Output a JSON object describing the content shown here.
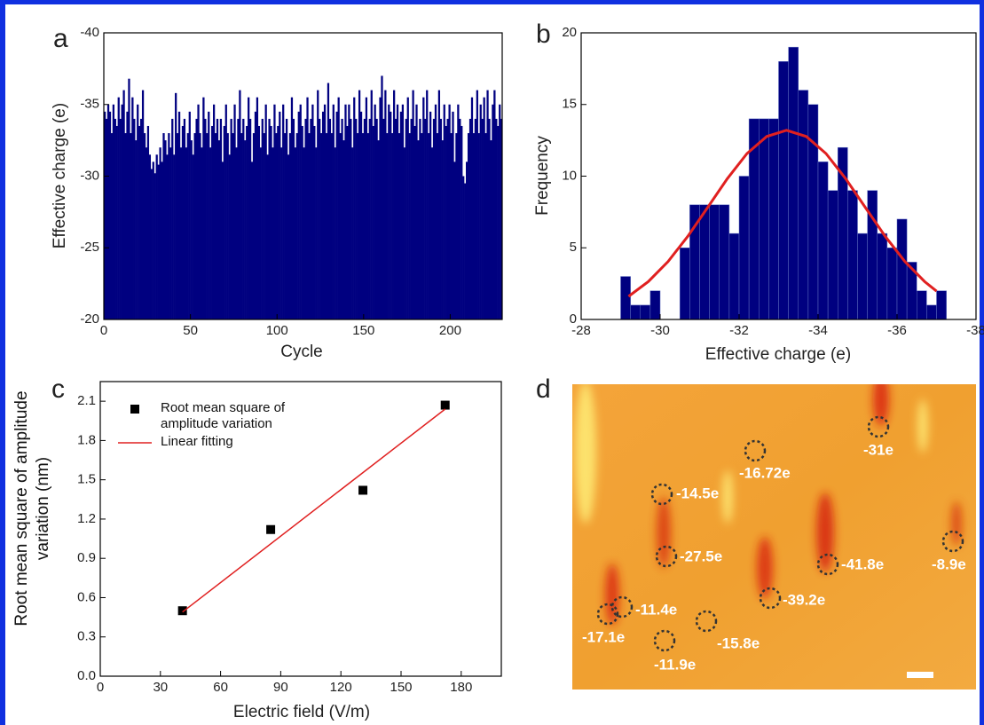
{
  "chart_data": [
    {
      "type": "bar",
      "panel_label": "a",
      "xlabel": "Cycle",
      "ylabel": "Effective charge (e)",
      "color": "#000080",
      "x": [
        1,
        2,
        3,
        4,
        5,
        6,
        7,
        8,
        9,
        10,
        11,
        12,
        13,
        14,
        15,
        16,
        17,
        18,
        19,
        20,
        21,
        22,
        23,
        24,
        25,
        26,
        27,
        28,
        29,
        30,
        31,
        32,
        33,
        34,
        35,
        36,
        37,
        38,
        39,
        40,
        41,
        42,
        43,
        44,
        45,
        46,
        47,
        48,
        49,
        50,
        51,
        52,
        53,
        54,
        55,
        56,
        57,
        58,
        59,
        60,
        61,
        62,
        63,
        64,
        65,
        66,
        67,
        68,
        69,
        70,
        71,
        72,
        73,
        74,
        75,
        76,
        77,
        78,
        79,
        80,
        81,
        82,
        83,
        84,
        85,
        86,
        87,
        88,
        89,
        90,
        91,
        92,
        93,
        94,
        95,
        96,
        97,
        98,
        99,
        100,
        101,
        102,
        103,
        104,
        105,
        106,
        107,
        108,
        109,
        110,
        111,
        112,
        113,
        114,
        115,
        116,
        117,
        118,
        119,
        120,
        121,
        122,
        123,
        124,
        125,
        126,
        127,
        128,
        129,
        130,
        131,
        132,
        133,
        134,
        135,
        136,
        137,
        138,
        139,
        140,
        141,
        142,
        143,
        144,
        145,
        146,
        147,
        148,
        149,
        150,
        151,
        152,
        153,
        154,
        155,
        156,
        157,
        158,
        159,
        160,
        161,
        162,
        163,
        164,
        165,
        166,
        167,
        168,
        169,
        170,
        171,
        172,
        173,
        174,
        175,
        176,
        177,
        178,
        179,
        180,
        181,
        182,
        183,
        184,
        185,
        186,
        187,
        188,
        189,
        190,
        191,
        192,
        193,
        194,
        195,
        196,
        197,
        198,
        199,
        200,
        201,
        202,
        203,
        204,
        205,
        206,
        207,
        208,
        209,
        210,
        211,
        212,
        213,
        214,
        215,
        216,
        217,
        218,
        219,
        220,
        221,
        222,
        223,
        224,
        225,
        226,
        227,
        228,
        229,
        230
      ],
      "values": [
        -34.5,
        -34,
        -35,
        -34.5,
        -33,
        -35,
        -34,
        -33.5,
        -35.5,
        -34,
        -35,
        -36,
        -33,
        -34.5,
        -36.8,
        -33,
        -35.5,
        -34,
        -32.5,
        -35,
        -33.5,
        -34,
        -36,
        -33,
        -32,
        -33.5,
        -31.5,
        -30.5,
        -31,
        -30.2,
        -31.5,
        -30.8,
        -32,
        -31,
        -33,
        -32.5,
        -31.5,
        -33,
        -32,
        -34,
        -31.5,
        -35.8,
        -33,
        -34.5,
        -32,
        -33.5,
        -34,
        -32,
        -33,
        -34.5,
        -32.5,
        -31.5,
        -33,
        -34,
        -35,
        -33,
        -32,
        -35.5,
        -34,
        -33,
        -34.5,
        -32,
        -33.5,
        -35,
        -33,
        -34,
        -32.5,
        -34,
        -31,
        -33.5,
        -35,
        -33,
        -31.5,
        -34,
        -33,
        -35,
        -32,
        -34,
        -36,
        -33,
        -34,
        -32.5,
        -33.5,
        -35.5,
        -34,
        -31,
        -33,
        -34.5,
        -35.5,
        -33.5,
        -32,
        -34,
        -33,
        -35,
        -31.5,
        -34,
        -33.5,
        -32,
        -35,
        -33,
        -33.5,
        -34.5,
        -32,
        -35,
        -33,
        -34,
        -31.5,
        -33,
        -35.5,
        -34,
        -32,
        -33,
        -34.5,
        -35,
        -33.5,
        -32,
        -34,
        -35.5,
        -33,
        -34,
        -35,
        -33.5,
        -32,
        -36,
        -34,
        -33,
        -34.5,
        -35,
        -33,
        -36.5,
        -34,
        -33,
        -35,
        -32,
        -34.5,
        -35.5,
        -33,
        -34,
        -32.5,
        -35,
        -33.5,
        -35,
        -34,
        -32,
        -35.5,
        -34,
        -33,
        -36,
        -34.5,
        -33,
        -34,
        -35.5,
        -33,
        -34,
        -36,
        -33.5,
        -35,
        -34,
        -32.5,
        -35.5,
        -37,
        -34,
        -36,
        -33,
        -35,
        -34.5,
        -33,
        -36,
        -34,
        -35,
        -33,
        -34.5,
        -35,
        -32,
        -34,
        -35.5,
        -33,
        -34,
        -36,
        -33.5,
        -35,
        -32.5,
        -34,
        -33,
        -35.5,
        -34,
        -36,
        -33,
        -34.5,
        -32,
        -34,
        -35,
        -33,
        -36,
        -34,
        -32.5,
        -35,
        -33.5,
        -34,
        -35,
        -33,
        -34.5,
        -31,
        -33,
        -35,
        -34,
        -33.5,
        -30,
        -29.5,
        -31,
        -33,
        -34,
        -35.5,
        -33,
        -34,
        -36,
        -33,
        -35,
        -34,
        -35.5,
        -33,
        -36,
        -34,
        -32.5,
        -35,
        -36,
        -34,
        -33.5,
        -35,
        -34
      ],
      "xlim": [
        0,
        230
      ],
      "xticks": [
        0,
        50,
        100,
        150,
        200
      ],
      "ylim": [
        -20,
        -40
      ],
      "yticks": [
        -40,
        -35,
        -30,
        -25,
        -20
      ]
    },
    {
      "type": "histogram",
      "panel_label": "b",
      "xlabel": "Effective charge (e)",
      "ylabel": "Frequency",
      "color": "#000080",
      "bins": [
        -29,
        -29.25,
        -29.5,
        -29.75,
        -30,
        -30.25,
        -30.5,
        -30.75,
        -31,
        -31.25,
        -31.5,
        -31.75,
        -32,
        -32.25,
        -32.5,
        -32.75,
        -33,
        -33.25,
        -33.5,
        -33.75,
        -34,
        -34.25,
        -34.5,
        -34.75,
        -35,
        -35.25,
        -35.5,
        -35.75,
        -36,
        -36.25,
        -36.5,
        -36.75,
        -37,
        -37.25
      ],
      "values": [
        3,
        1,
        1,
        2,
        0,
        0,
        5,
        8,
        8,
        8,
        8,
        6,
        10,
        14,
        14,
        14,
        18,
        19,
        16,
        15,
        11,
        9,
        12,
        9,
        6,
        9,
        6,
        5,
        7,
        4,
        2,
        1,
        2
      ],
      "fit_curve": {
        "color": "#e02020",
        "x": [
          -29.2,
          -29.7,
          -30.2,
          -30.7,
          -31.2,
          -31.7,
          -32.2,
          -32.7,
          -33.2,
          -33.7,
          -34.2,
          -34.7,
          -35.2,
          -35.7,
          -36.2,
          -36.7,
          -37
        ],
        "values": [
          1.61,
          2.64,
          4.04,
          5.8,
          7.8,
          9.82,
          11.58,
          12.77,
          13.2,
          12.77,
          11.58,
          9.82,
          7.8,
          5.8,
          4.04,
          2.64,
          1.98
        ]
      },
      "xlim": [
        -28,
        -38
      ],
      "xticks": [
        -28,
        -30,
        -32,
        -34,
        -36,
        -38
      ],
      "ylim": [
        0,
        20
      ],
      "yticks": [
        0,
        5,
        10,
        15,
        20
      ]
    },
    {
      "type": "scatter",
      "panel_label": "c",
      "xlabel": "Electric field (V/m)",
      "ylabel": "Root mean square of amplitude variation (nm)",
      "series": [
        {
          "name": "Root mean square of amplitude variation",
          "color": "#000000",
          "x": [
            41,
            85,
            131,
            172
          ],
          "values": [
            0.5,
            1.12,
            1.42,
            2.07
          ]
        },
        {
          "name": "Linear fitting",
          "color": "#e02020",
          "type": "line",
          "x": [
            41,
            172
          ],
          "values": [
            0.49,
            2.04
          ]
        }
      ],
      "xlim": [
        0,
        200
      ],
      "xticks": [
        0,
        30,
        60,
        90,
        120,
        150,
        180
      ],
      "ylim": [
        0,
        2.25
      ],
      "yticks": [
        {
          "value": 0,
          "label": "0.0"
        },
        0.3,
        0.6,
        0.9,
        1.2,
        1.5,
        1.8,
        2.1
      ]
    }
  ],
  "image_panel": {
    "panel_label": "d",
    "labels": [
      "-31e",
      "-16.72e",
      "-14.5e",
      "-27.5e",
      "-41.8e",
      "-8.9e",
      "-39.2e",
      "-11.4e",
      "-17.1e",
      "-15.8e",
      "-11.9e"
    ]
  }
}
